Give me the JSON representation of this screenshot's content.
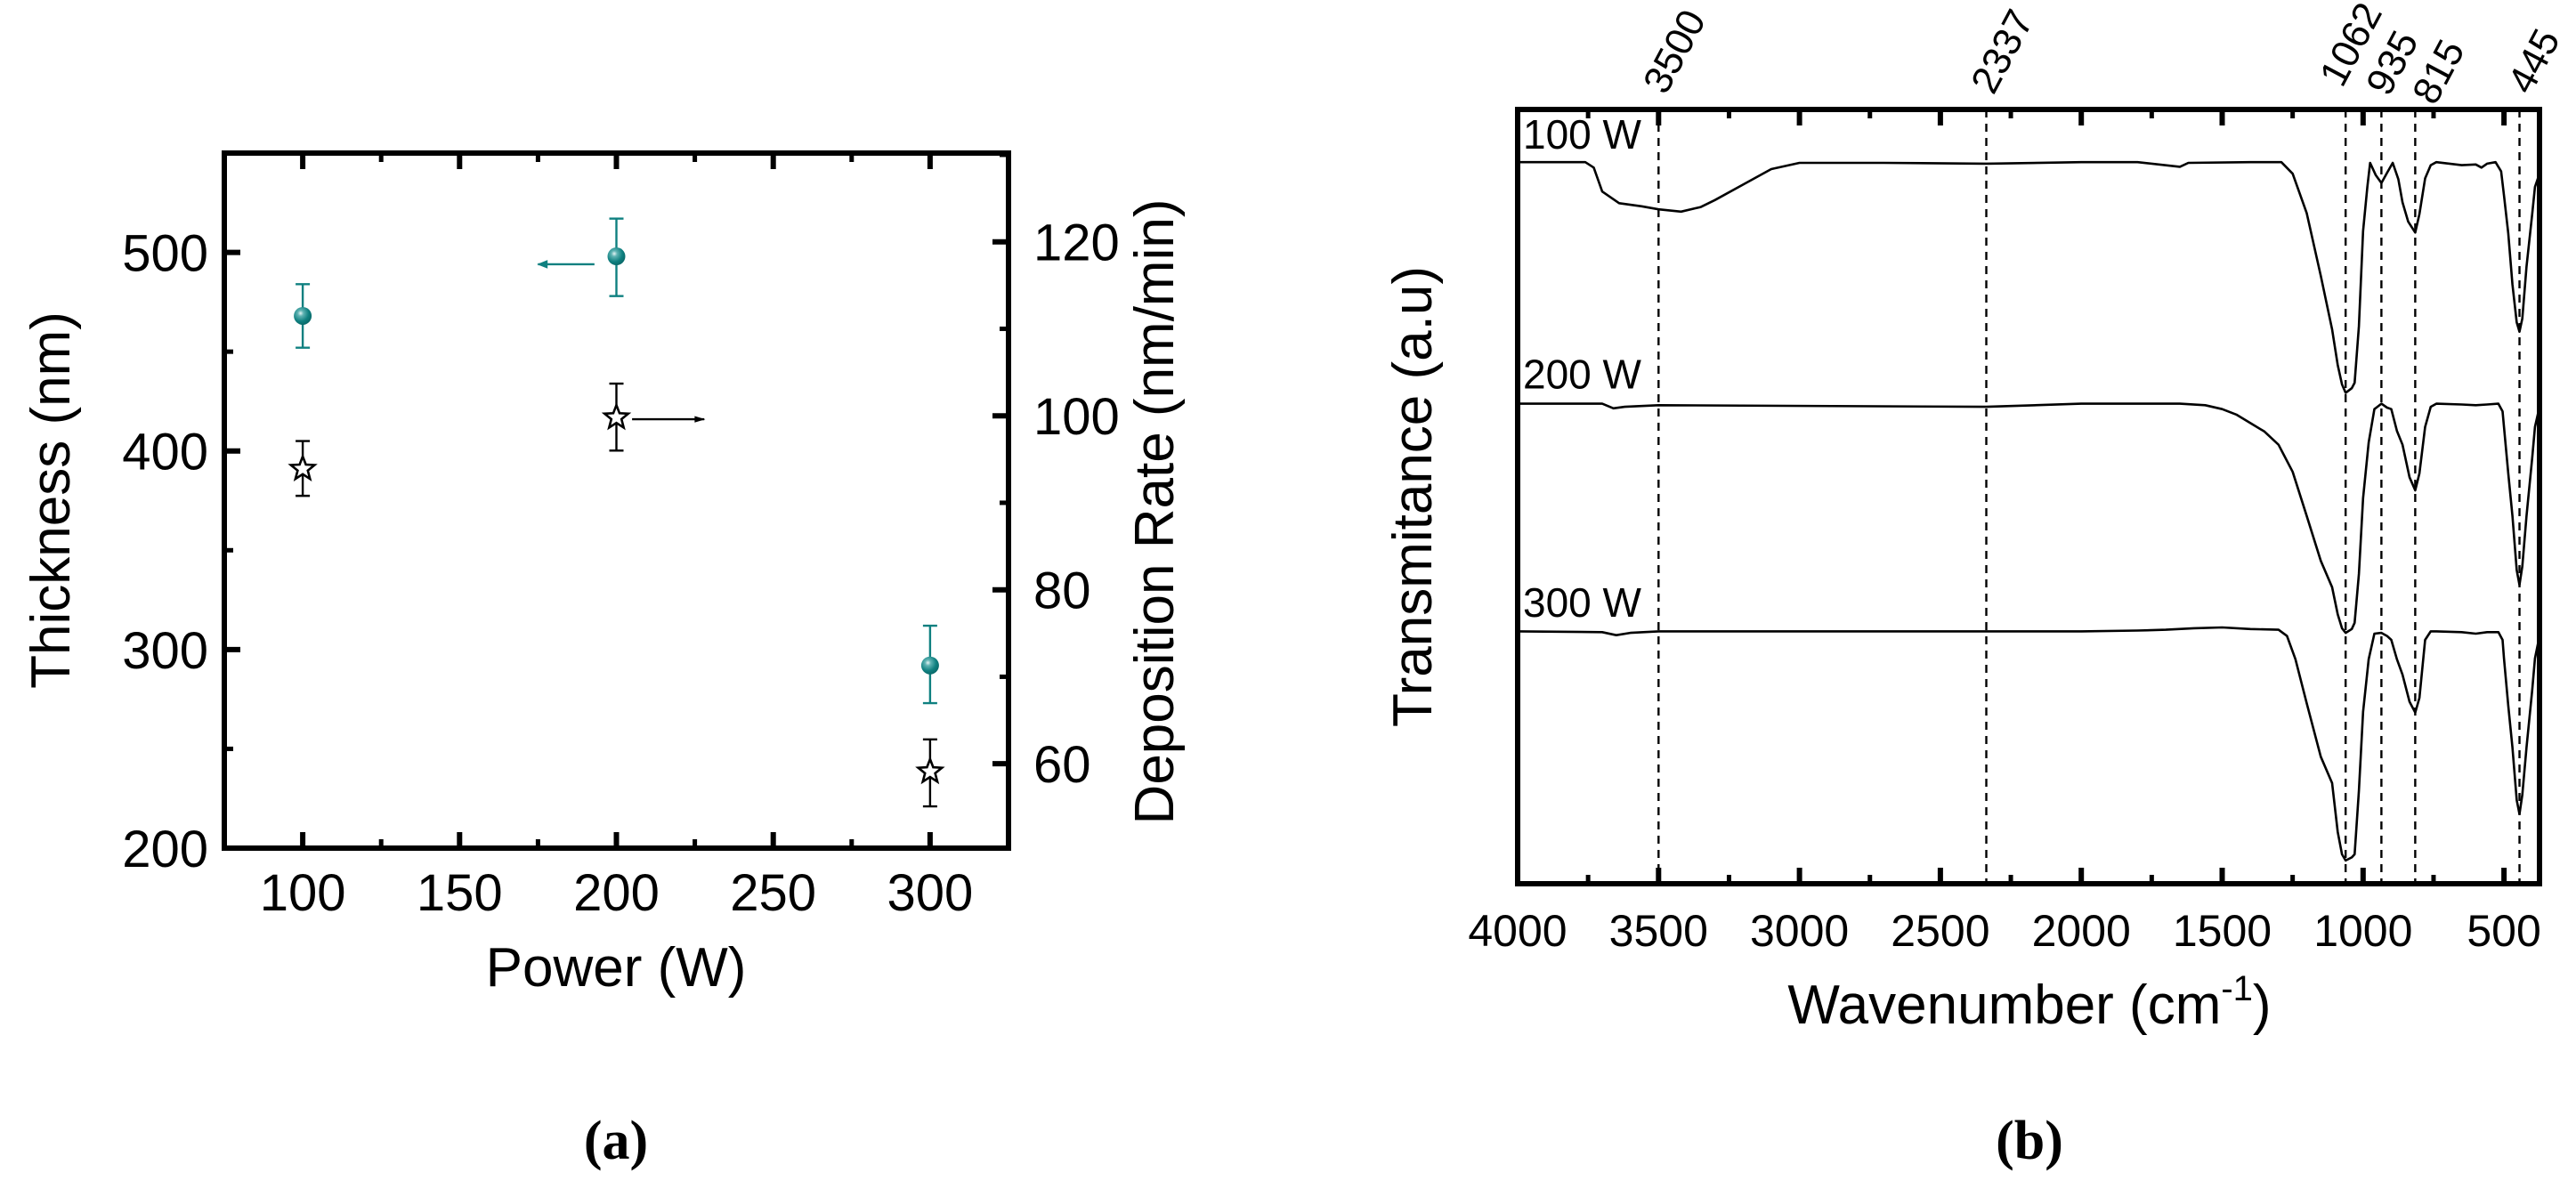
{
  "figure": {
    "panel_a_caption": "(a)",
    "panel_b_caption": "(b)"
  },
  "colors": {
    "thickness_series": "#0f8080",
    "rate_series": "#000000",
    "axes": "#000000",
    "background": "#ffffff"
  },
  "chart_data": [
    {
      "panel": "a",
      "type": "scatter",
      "title": "",
      "xlabel": "Power (W)",
      "ylabel": "Thickness (nm)",
      "y2label": "Deposition Rate (nm/min)",
      "xlim": [
        75,
        325
      ],
      "ylim": [
        200,
        550
      ],
      "y2lim": [
        50.3,
        130.2
      ],
      "xticks": [
        100,
        150,
        200,
        250,
        300
      ],
      "yticks": [
        200,
        300,
        400,
        500
      ],
      "y2ticks": [
        60,
        80,
        100,
        120
      ],
      "grid": false,
      "legend": "none (arrows indicate axis for each series)",
      "series": [
        {
          "name": "Thickness",
          "axis": "left",
          "marker": "sphere",
          "color": "#0f8080",
          "x": [
            100,
            200,
            300
          ],
          "y": [
            468,
            498,
            292
          ],
          "err_low": [
            452,
            478,
            273
          ],
          "err_high": [
            484,
            517,
            312
          ],
          "axis_arrow": {
            "at_x": 200,
            "from_x": 193,
            "to_x": 175,
            "y": 494,
            "direction": "left"
          }
        },
        {
          "name": "Deposition Rate",
          "axis": "right",
          "marker": "open-star",
          "color": "#000000",
          "x": [
            100,
            200,
            300
          ],
          "y": [
            93.9,
            99.8,
            59.1
          ],
          "err_low": [
            90.8,
            96.0,
            55.1
          ],
          "err_high": [
            97.1,
            103.7,
            62.8
          ],
          "axis_arrow": {
            "from_x": 205,
            "to_x": 228,
            "y": 99.6,
            "direction": "right"
          }
        }
      ]
    },
    {
      "panel": "b",
      "type": "line",
      "title": "",
      "xlabel": "Wavenumber (cm",
      "xlabel_sup": "-1",
      "xlabel_tail": ")",
      "ylabel": "Transmitance (a.u)",
      "xlim": [
        4000,
        374
      ],
      "ylim": [
        0,
        100
      ],
      "xticks": [
        4000,
        3500,
        3000,
        2500,
        2000,
        1500,
        1000,
        500
      ],
      "yticks": [],
      "grid": false,
      "reference_lines": [
        3500,
        2337,
        1062,
        935,
        815,
        445
      ],
      "reference_labels": [
        "3500",
        "2337",
        "1062",
        "935",
        "815",
        "445"
      ],
      "series": [
        {
          "name": "100 W",
          "label_y": 94.5,
          "points": [
            [
              4000,
              93.2
            ],
            [
              3760,
              93.2
            ],
            [
              3730,
              92.5
            ],
            [
              3700,
              89.4
            ],
            [
              3640,
              87.9
            ],
            [
              3560,
              87.5
            ],
            [
              3500,
              87.1
            ],
            [
              3420,
              86.8
            ],
            [
              3350,
              87.4
            ],
            [
              3300,
              88.3
            ],
            [
              3200,
              90.3
            ],
            [
              3100,
              92.3
            ],
            [
              3000,
              93.1
            ],
            [
              2700,
              93.1
            ],
            [
              2337,
              93.0
            ],
            [
              2000,
              93.2
            ],
            [
              1800,
              93.2
            ],
            [
              1650,
              92.6
            ],
            [
              1620,
              93.1
            ],
            [
              1400,
              93.2
            ],
            [
              1290,
              93.2
            ],
            [
              1250,
              91.7
            ],
            [
              1200,
              86.6
            ],
            [
              1150,
              78.5
            ],
            [
              1110,
              71.6
            ],
            [
              1090,
              67.0
            ],
            [
              1075,
              64.5
            ],
            [
              1062,
              63.4
            ],
            [
              1040,
              64.0
            ],
            [
              1030,
              64.7
            ],
            [
              1015,
              72.0
            ],
            [
              1000,
              84.3
            ],
            [
              985,
              90.0
            ],
            [
              975,
              93.1
            ],
            [
              955,
              91.5
            ],
            [
              935,
              90.5
            ],
            [
              915,
              91.8
            ],
            [
              895,
              93.1
            ],
            [
              875,
              91.0
            ],
            [
              860,
              88.0
            ],
            [
              840,
              85.5
            ],
            [
              815,
              84.1
            ],
            [
              800,
              86.5
            ],
            [
              780,
              91.1
            ],
            [
              760,
              92.8
            ],
            [
              740,
              93.2
            ],
            [
              650,
              92.8
            ],
            [
              600,
              92.9
            ],
            [
              580,
              92.5
            ],
            [
              560,
              93.0
            ],
            [
              530,
              93.2
            ],
            [
              510,
              92.0
            ],
            [
              500,
              88.9
            ],
            [
              485,
              84.0
            ],
            [
              470,
              77.4
            ],
            [
              455,
              72.5
            ],
            [
              445,
              71.3
            ],
            [
              435,
              73.0
            ],
            [
              420,
              79.7
            ],
            [
              400,
              86.5
            ],
            [
              390,
              90.0
            ],
            [
              374,
              91.7
            ]
          ]
        },
        {
          "name": "200 W",
          "label_y": 63.5,
          "points": [
            [
              4000,
              62.0
            ],
            [
              3700,
              62.0
            ],
            [
              3660,
              61.4
            ],
            [
              3620,
              61.6
            ],
            [
              3500,
              61.8
            ],
            [
              2337,
              61.6
            ],
            [
              2000,
              62.0
            ],
            [
              1800,
              62.0
            ],
            [
              1650,
              62.0
            ],
            [
              1560,
              61.8
            ],
            [
              1500,
              61.3
            ],
            [
              1450,
              60.6
            ],
            [
              1400,
              59.5
            ],
            [
              1350,
              58.4
            ],
            [
              1300,
              56.7
            ],
            [
              1250,
              53.2
            ],
            [
              1200,
              47.5
            ],
            [
              1150,
              41.7
            ],
            [
              1110,
              38.3
            ],
            [
              1090,
              34.8
            ],
            [
              1075,
              33.0
            ],
            [
              1062,
              32.4
            ],
            [
              1040,
              32.9
            ],
            [
              1030,
              33.7
            ],
            [
              1015,
              40.0
            ],
            [
              1000,
              49.8
            ],
            [
              980,
              57.0
            ],
            [
              960,
              61.3
            ],
            [
              935,
              62.0
            ],
            [
              915,
              61.5
            ],
            [
              900,
              61.3
            ],
            [
              880,
              58.5
            ],
            [
              860,
              56.7
            ],
            [
              835,
              52.5
            ],
            [
              815,
              50.8
            ],
            [
              800,
              53.0
            ],
            [
              780,
              59.0
            ],
            [
              760,
              61.6
            ],
            [
              740,
              62.0
            ],
            [
              650,
              61.9
            ],
            [
              600,
              61.8
            ],
            [
              560,
              61.9
            ],
            [
              520,
              62.0
            ],
            [
              505,
              61.0
            ],
            [
              500,
              59.0
            ],
            [
              485,
              53.0
            ],
            [
              470,
              47.5
            ],
            [
              455,
              40.5
            ],
            [
              445,
              38.6
            ],
            [
              435,
              41.0
            ],
            [
              420,
              47.5
            ],
            [
              400,
              55.0
            ],
            [
              390,
              59.0
            ],
            [
              374,
              61.6
            ]
          ]
        },
        {
          "name": "300 W",
          "label_y": 34.0,
          "points": [
            [
              4000,
              32.6
            ],
            [
              3700,
              32.5
            ],
            [
              3650,
              32.1
            ],
            [
              3600,
              32.4
            ],
            [
              3500,
              32.6
            ],
            [
              2337,
              32.6
            ],
            [
              2000,
              32.6
            ],
            [
              1800,
              32.7
            ],
            [
              1700,
              32.8
            ],
            [
              1600,
              33.0
            ],
            [
              1500,
              33.1
            ],
            [
              1400,
              32.9
            ],
            [
              1300,
              32.8
            ],
            [
              1270,
              32.0
            ],
            [
              1240,
              29.0
            ],
            [
              1200,
              23.3
            ],
            [
              1150,
              16.4
            ],
            [
              1110,
              13.0
            ],
            [
              1090,
              6.7
            ],
            [
              1075,
              3.8
            ],
            [
              1062,
              3.0
            ],
            [
              1040,
              3.4
            ],
            [
              1030,
              3.8
            ],
            [
              1015,
              12.0
            ],
            [
              1000,
              22.2
            ],
            [
              980,
              29.0
            ],
            [
              960,
              32.3
            ],
            [
              935,
              32.4
            ],
            [
              915,
              32.0
            ],
            [
              900,
              31.5
            ],
            [
              880,
              29.0
            ],
            [
              860,
              27.0
            ],
            [
              835,
              23.5
            ],
            [
              815,
              22.1
            ],
            [
              800,
              24.0
            ],
            [
              780,
              31.5
            ],
            [
              760,
              32.6
            ],
            [
              740,
              32.6
            ],
            [
              650,
              32.5
            ],
            [
              600,
              32.3
            ],
            [
              560,
              32.5
            ],
            [
              520,
              32.5
            ],
            [
              505,
              31.5
            ],
            [
              500,
              29.1
            ],
            [
              485,
              23.0
            ],
            [
              470,
              17.6
            ],
            [
              455,
              10.8
            ],
            [
              445,
              9.0
            ],
            [
              435,
              11.5
            ],
            [
              420,
              17.6
            ],
            [
              400,
              25.0
            ],
            [
              390,
              29.1
            ],
            [
              374,
              32.0
            ]
          ]
        }
      ]
    }
  ]
}
